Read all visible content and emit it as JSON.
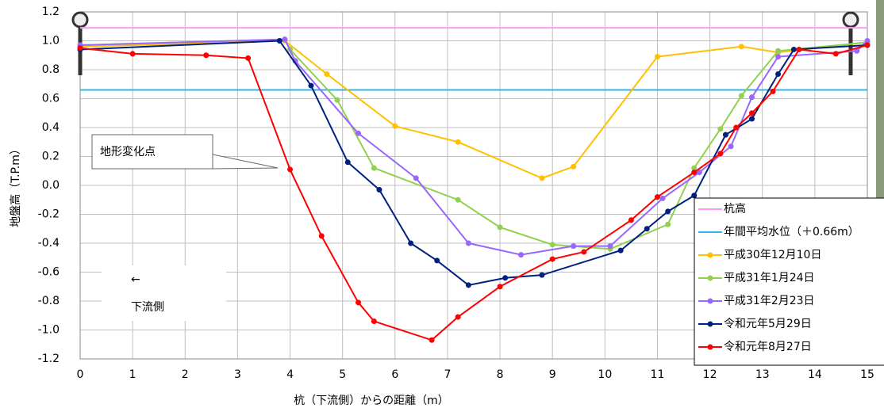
{
  "chart_data": {
    "type": "line",
    "x_label": "杭（下流側）からの距離（m）",
    "y_label": "地盤高（T.P.m）",
    "xlim": [
      0,
      15
    ],
    "xticks": [
      0,
      1,
      2,
      3,
      4,
      5,
      6,
      7,
      8,
      9,
      10,
      11,
      12,
      13,
      14,
      15
    ],
    "ylim": [
      -1.2,
      1.2
    ],
    "yticks": [
      -1.2,
      {
        "value": -1,
        "label": "-1.0"
      },
      -0.8,
      -0.6,
      -0.4,
      -0.2,
      {
        "value": 0,
        "label": "0.0"
      },
      0.2,
      0.4,
      0.6,
      0.8,
      {
        "value": 1,
        "label": "1.0"
      },
      1.2
    ],
    "grid": true,
    "legend": "lower right",
    "annotations": [
      "地形変化点",
      "←",
      "下流側"
    ],
    "series": [
      {
        "name": "杭高",
        "color": "#ff99ff",
        "marker": false,
        "x": [
          0,
          15
        ],
        "values": [
          1.09,
          1.09
        ]
      },
      {
        "name": "年間平均水位（＋0.66m）",
        "color": "#33b5e5",
        "marker": false,
        "x": [
          0,
          15
        ],
        "values": [
          0.66,
          0.66
        ]
      },
      {
        "name": "平成30年12月10日",
        "color": "#ffc000",
        "marker": true,
        "x": [
          0,
          3.9,
          4.7,
          6.0,
          7.2,
          8.8,
          9.4,
          11.0,
          12.6,
          13.3,
          15
        ],
        "values": [
          0.96,
          1.0,
          0.77,
          0.41,
          0.3,
          0.05,
          0.13,
          0.89,
          0.96,
          0.92,
          0.99
        ]
      },
      {
        "name": "平成31年1月24日",
        "color": "#92d050",
        "marker": true,
        "x": [
          0,
          3.9,
          4.0,
          4.9,
          5.6,
          7.2,
          8.0,
          9.0,
          10.1,
          11.2,
          11.7,
          12.2,
          12.6,
          13.3,
          15
        ],
        "values": [
          0.97,
          1.01,
          0.94,
          0.59,
          0.12,
          -0.1,
          -0.29,
          -0.41,
          -0.44,
          -0.27,
          0.12,
          0.39,
          0.62,
          0.93,
          0.99
        ]
      },
      {
        "name": "平成31年2月23日",
        "color": "#9966ff",
        "marker": true,
        "x": [
          0,
          3.9,
          4.1,
          5.3,
          6.4,
          7.4,
          8.4,
          9.4,
          10.1,
          11.1,
          11.8,
          12.4,
          12.8,
          13.3,
          14.8,
          15
        ],
        "values": [
          0.97,
          1.01,
          0.86,
          0.36,
          0.05,
          -0.4,
          -0.48,
          -0.42,
          -0.42,
          -0.09,
          0.09,
          0.27,
          0.61,
          0.89,
          0.93,
          1.0
        ]
      },
      {
        "name": "令和元年5月29日",
        "color": "#002080",
        "marker": true,
        "x": [
          0,
          3.8,
          4.4,
          5.1,
          5.7,
          6.3,
          6.8,
          7.4,
          8.1,
          8.8,
          10.3,
          10.8,
          11.2,
          11.7,
          12.3,
          12.8,
          13.3,
          13.6,
          15
        ],
        "values": [
          0.94,
          1.0,
          0.69,
          0.16,
          -0.03,
          -0.4,
          -0.52,
          -0.69,
          -0.64,
          -0.62,
          -0.45,
          -0.3,
          -0.18,
          -0.07,
          0.35,
          0.46,
          0.77,
          0.94,
          0.97
        ]
      },
      {
        "name": "令和元年8月27日",
        "color": "#ff0000",
        "marker": true,
        "x": [
          0,
          1,
          2.4,
          3.2,
          4.0,
          4.6,
          5.3,
          5.6,
          6.7,
          7.2,
          8.0,
          9.0,
          9.6,
          10.5,
          11.0,
          11.7,
          12.2,
          12.5,
          12.8,
          13.2,
          13.7,
          14.4,
          15
        ],
        "values": [
          0.95,
          0.91,
          0.9,
          0.88,
          0.11,
          -0.35,
          -0.81,
          -0.94,
          -1.07,
          -0.91,
          -0.7,
          -0.51,
          -0.46,
          -0.24,
          -0.08,
          0.09,
          0.22,
          0.4,
          0.5,
          0.65,
          0.94,
          0.91,
          0.97
        ]
      }
    ]
  }
}
